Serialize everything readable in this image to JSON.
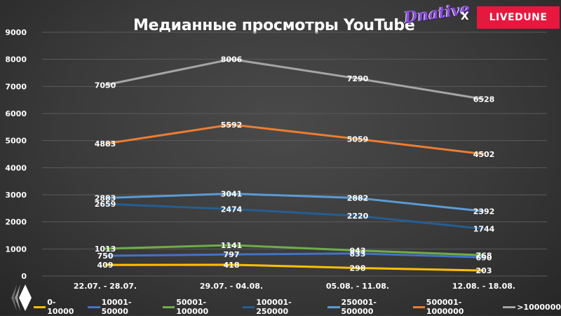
{
  "header": {
    "title": "Медианные просмотры YouTube",
    "brand_left": "Dnative",
    "brand_separator": "X",
    "brand_right": "LIVEDUNE"
  },
  "colors": {
    "background": "#3a3a3a",
    "livedune": "#e8173e",
    "dnative": "#8a4fd8"
  },
  "chart_data": {
    "type": "line",
    "title": "Медианные просмотры YouTube",
    "xlabel": "",
    "ylabel": "",
    "ylim": [
      0,
      9000
    ],
    "yticks": [
      0,
      1000,
      2000,
      3000,
      4000,
      5000,
      6000,
      7000,
      8000,
      9000
    ],
    "grid": true,
    "legend_position": "bottom",
    "categories": [
      "22.07. - 28.07.",
      "29.07. - 04.08.",
      "05.08. - 11.08.",
      "12.08. - 18.08."
    ],
    "series": [
      {
        "name": "0-10000",
        "color": "#ffc000",
        "values": [
          409,
          418,
          298,
          203
        ]
      },
      {
        "name": "10001-50000",
        "color": "#4472c4",
        "values": [
          750,
          797,
          833,
          690
        ]
      },
      {
        "name": "50001-100000",
        "color": "#70ad47",
        "values": [
          1013,
          1141,
          943,
          768
        ]
      },
      {
        "name": "100001-250000",
        "color": "#255e91",
        "values": [
          2659,
          2474,
          2220,
          1744
        ]
      },
      {
        "name": "250001-500000",
        "color": "#5b9bd5",
        "values": [
          2883,
          3041,
          2882,
          2392
        ]
      },
      {
        "name": "500001-1000000",
        "color": "#ed7d31",
        "values": [
          4883,
          5592,
          5059,
          4502
        ]
      },
      {
        "name": ">1000000",
        "color": "#a5a5a5",
        "values": [
          7050,
          8006,
          7290,
          6528
        ]
      }
    ]
  }
}
